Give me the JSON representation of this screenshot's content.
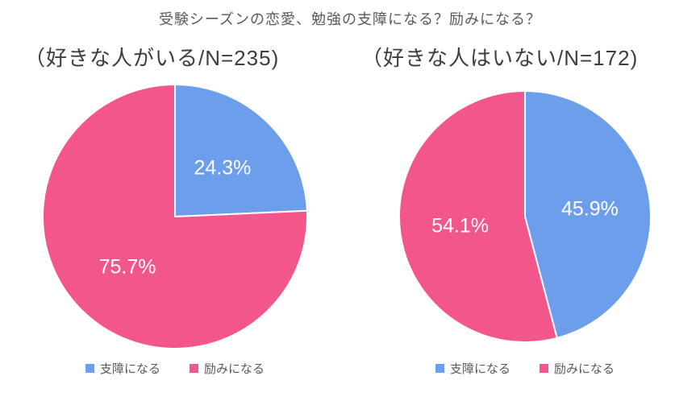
{
  "title": "受験シーズンの恋愛、勉強の支障になる？励みになる？",
  "colors": {
    "blue": "#6d9eeb",
    "pink": "#f2568b"
  },
  "legend": [
    {
      "label": "支障になる",
      "color": "blue"
    },
    {
      "label": "励みになる",
      "color": "pink"
    }
  ],
  "chart_data": [
    {
      "type": "pie",
      "title": "（好きな人がいる/N=235)",
      "start_angle_deg": 0,
      "direction": "clockwise",
      "legend_position": "bottom",
      "slices": [
        {
          "name": "支障になる",
          "value": 24.3,
          "label": "24.3%",
          "color": "blue"
        },
        {
          "name": "励みになる",
          "value": 75.7,
          "label": "75.7%",
          "color": "pink"
        }
      ]
    },
    {
      "type": "pie",
      "title": "（好きな人はいない/N=172)",
      "start_angle_deg": 0,
      "direction": "clockwise",
      "legend_position": "bottom",
      "slices": [
        {
          "name": "支障になる",
          "value": 45.9,
          "label": "45.9%",
          "color": "blue"
        },
        {
          "name": "励みになる",
          "value": 54.1,
          "label": "54.1%",
          "color": "pink"
        }
      ]
    }
  ]
}
